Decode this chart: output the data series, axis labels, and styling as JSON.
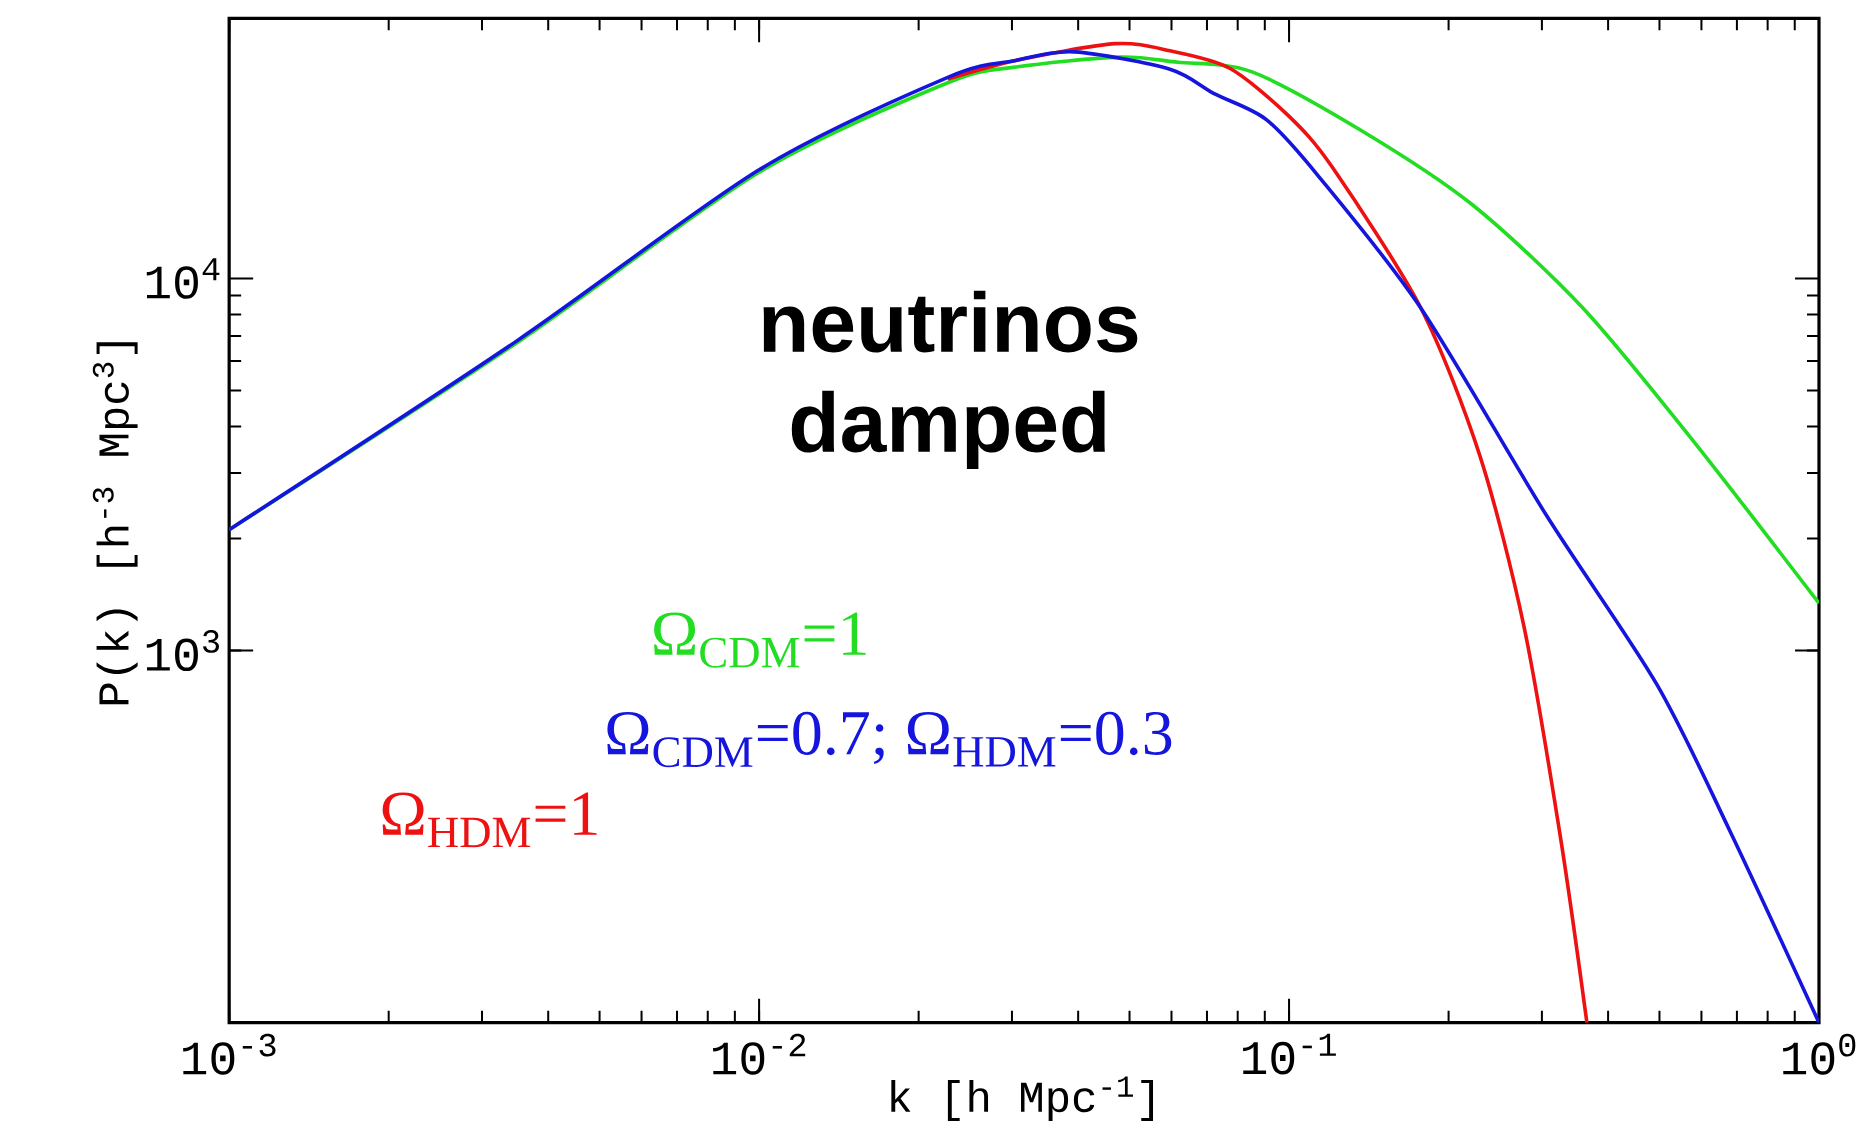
{
  "chart_data": {
    "type": "line",
    "log": "xy",
    "xlabel": "k [h Mpc$^{-1}$]",
    "ylabel": "P(k) [h$^{-3}$ Mpc$^{3}$]",
    "xlim": [
      0.001,
      1
    ],
    "ylim": [
      100,
      50000
    ],
    "xticks": [
      {
        "value": 0.001,
        "label": "10$^{-3}$"
      },
      {
        "value": 0.01,
        "label": "10$^{-2}$"
      },
      {
        "value": 0.1,
        "label": "10$^{-1}$"
      },
      {
        "value": 1,
        "label": "10$^{0}$"
      }
    ],
    "yticks": [
      {
        "value": 1000,
        "label": "10$^{3}$"
      },
      {
        "value": 10000,
        "label": "10$^{4}$"
      }
    ],
    "annotations": [
      "neutrinos damped"
    ],
    "series": [
      {
        "name": "Ω$_{CDM}$=1",
        "color": "#22dd22",
        "x": [
          0.001,
          0.00348,
          0.01,
          0.0227,
          0.0305,
          0.0478,
          0.0617,
          0.0849,
          0.1371,
          0.2218,
          0.3589,
          0.5794,
          1
        ],
        "values": [
          2113,
          6700,
          19300,
          33570,
          37000,
          39360,
          38100,
          35970,
          24950,
          15780,
          8318,
          3656,
          1340
        ]
      },
      {
        "name": "Ω$_{CDM}$=0.7;  Ω$_{HDM}$=0.3",
        "color": "#1515dd",
        "x": [
          0.001,
          0.00348,
          0.01,
          0.0227,
          0.0305,
          0.0394,
          0.0596,
          0.0724,
          0.0906,
          0.1132,
          0.1774,
          0.3055,
          0.4943,
          0.6808,
          1
        ],
        "values": [
          2113,
          6776,
          19590,
          34700,
          38550,
          40640,
          36500,
          31330,
          26730,
          18970,
          8318,
          2317,
          811,
          325,
          100
        ]
      },
      {
        "name": "Ω$_{HDM}$=1",
        "color": "#ee1111",
        "x": [
          0.0227,
          0.0305,
          0.047,
          0.0596,
          0.0773,
          0.0998,
          0.1208,
          0.1774,
          0.2291,
          0.2773,
          0.3258,
          0.3648
        ],
        "values": [
          34360,
          38550,
          42760,
          40930,
          36730,
          27350,
          19860,
          8318,
          3342,
          1167,
          310,
          100
        ]
      }
    ]
  }
}
